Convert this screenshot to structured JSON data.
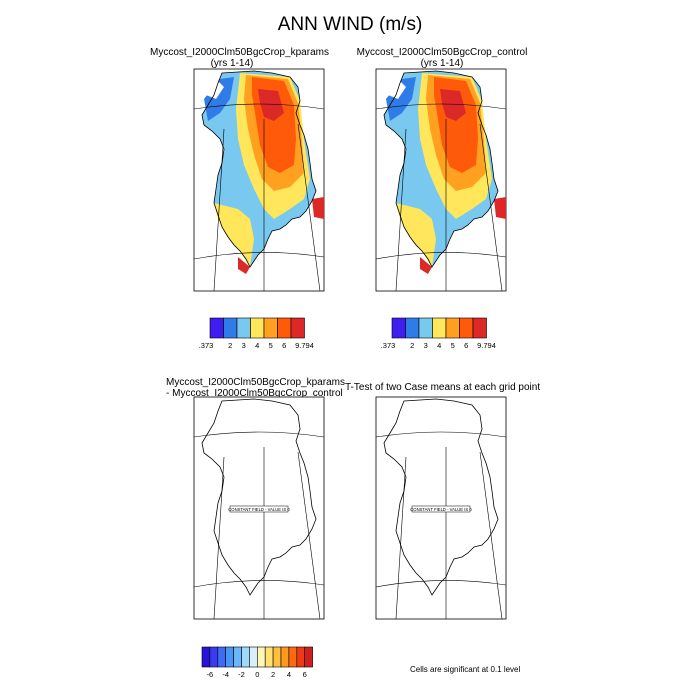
{
  "page": {
    "title": "ANN WIND (m/s)",
    "note": "Cells are significant at 0.1 level",
    "sig_panel_title": "T-Test of two Case means at each grid point",
    "constant_label": "CONSTANT FIELD - VALUE IS 0"
  },
  "chart_data": [
    {
      "type": "heatmap",
      "title": "Myccost_I2000Clm50BgcCrop_kparams",
      "subtitle": "(yrs 1-14)",
      "colorbar": {
        "labels": [
          ".373",
          "2",
          "3",
          "4",
          "5",
          "6",
          "9.794"
        ],
        "colors": [
          "#3f1cf0",
          "#2f7be8",
          "#79c8f0",
          "#ffe65a",
          "#ffa020",
          "#ff5a0a",
          "#dd2828"
        ]
      }
    },
    {
      "type": "heatmap",
      "title": "Myccost_I2000Clm50BgcCrop_control",
      "subtitle": "(yrs 1-14)",
      "colorbar": {
        "labels": [
          ".373",
          "2",
          "3",
          "4",
          "5",
          "6",
          "9.794"
        ],
        "colors": [
          "#3f1cf0",
          "#2f7be8",
          "#79c8f0",
          "#ffe65a",
          "#ffa020",
          "#ff5a0a",
          "#dd2828"
        ]
      }
    },
    {
      "type": "heatmap",
      "title": "Myccost_I2000Clm50BgcCrop_kparams",
      "subtitle": "- Myccost_I2000Clm50BgcCrop_control",
      "colorbar": {
        "labels": [
          "-6",
          "-4",
          "-2",
          "0",
          "2",
          "4",
          "6"
        ],
        "colors": [
          "#2a12d8",
          "#3a3cf0",
          "#3f6cf5",
          "#4a96f8",
          "#6ab8fa",
          "#a0d8fb",
          "#d8f0fb",
          "#fff6b8",
          "#ffe070",
          "#ffc040",
          "#ff9a20",
          "#ff6a10",
          "#f03a14",
          "#d01e1e"
        ]
      }
    }
  ]
}
